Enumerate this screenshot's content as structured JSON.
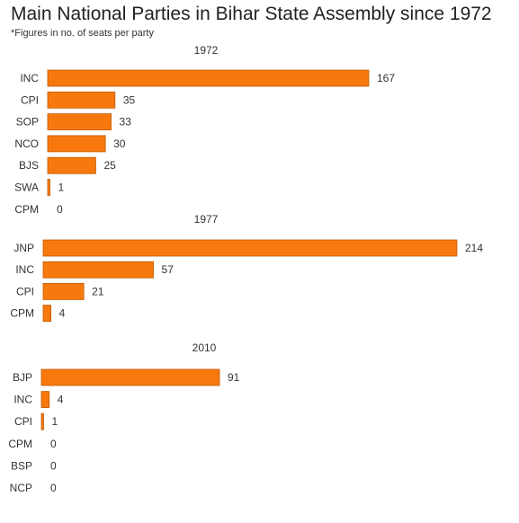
{
  "title": "Main National Parties in Bihar State Assembly since 1972",
  "subtitle": "*Figures in no. of seats per party",
  "colors": {
    "bar": "#f7790e",
    "bar_stroke": "#c25a00"
  },
  "chart_data": [
    {
      "type": "bar",
      "orientation": "horizontal",
      "title": "1972",
      "categories": [
        "INC",
        "CPI",
        "SOP",
        "NCO",
        "BJS",
        "SWA",
        "CPM"
      ],
      "values": [
        167,
        35,
        33,
        30,
        25,
        1,
        0
      ]
    },
    {
      "type": "bar",
      "orientation": "horizontal",
      "title": "1977",
      "categories": [
        "JNP",
        "INC",
        "CPI",
        "CPM"
      ],
      "values": [
        214,
        57,
        21,
        4
      ]
    },
    {
      "type": "bar",
      "orientation": "horizontal",
      "title": "2010",
      "categories": [
        "BJP",
        "INC",
        "CPI",
        "CPM",
        "BSP",
        "NCP"
      ],
      "values": [
        91,
        4,
        1,
        0,
        0,
        0
      ]
    }
  ]
}
